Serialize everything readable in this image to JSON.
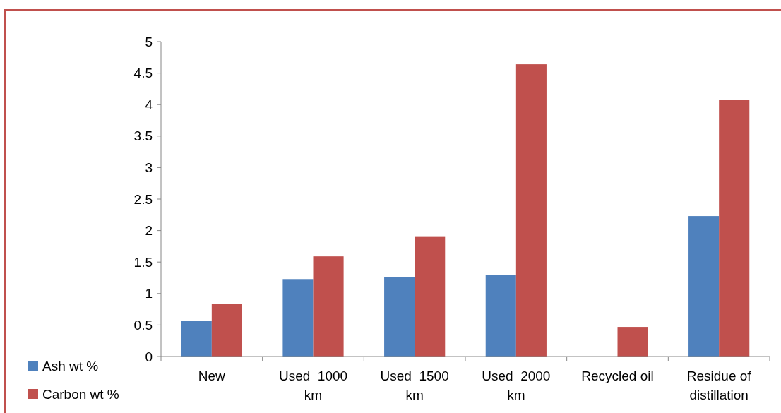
{
  "chart_data": {
    "type": "bar",
    "categories": [
      "New",
      "Used  1000 km",
      "Used  1500 km",
      "Used  2000 km",
      "Recycled oil",
      "Residue of distillation"
    ],
    "series": [
      {
        "name": "Ash wt %",
        "color": "#4f81bd",
        "values": [
          0.57,
          1.23,
          1.26,
          1.29,
          null,
          2.23
        ]
      },
      {
        "name": "Carbon wt %",
        "color": "#c0504d",
        "values": [
          0.83,
          1.59,
          1.91,
          4.64,
          0.47,
          4.07
        ]
      }
    ],
    "ylim": [
      0,
      5
    ],
    "yticks": [
      0,
      0.5,
      1,
      1.5,
      2,
      2.5,
      3,
      3.5,
      4,
      4.5,
      5
    ],
    "grid": false,
    "legend": "bottom left"
  }
}
